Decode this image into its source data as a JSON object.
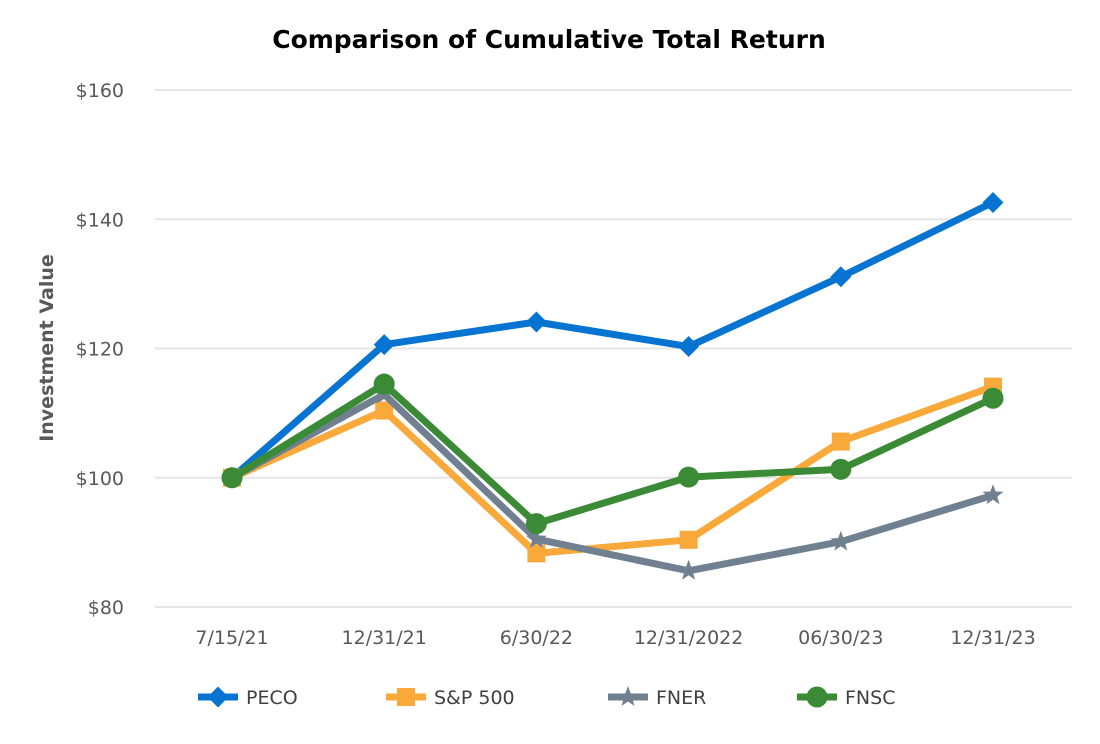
{
  "chart_data": {
    "type": "line",
    "title": "Comparison of Cumulative Total Return",
    "xlabel": "",
    "ylabel": "Investment Value",
    "categories": [
      "7/15/21",
      "12/31/21",
      "6/30/22",
      "12/31/2022",
      "06/30/23",
      "12/31/23"
    ],
    "ylim": [
      80,
      160
    ],
    "yticks": [
      80,
      100,
      120,
      140,
      160
    ],
    "ytick_labels": [
      "$80",
      "$100",
      "$120",
      "$140",
      "$160"
    ],
    "grid": true,
    "legend_position": "bottom",
    "series": [
      {
        "name": "PECO",
        "color": "#0874d2",
        "marker": "diamond",
        "values": [
          100,
          120.6,
          124.1,
          120.3,
          131.1,
          142.6
        ]
      },
      {
        "name": "S&P 500",
        "color": "#f8a93a",
        "marker": "square",
        "values": [
          100,
          110.4,
          88.3,
          90.4,
          105.6,
          114.1
        ]
      },
      {
        "name": "FNER",
        "color": "#708090",
        "marker": "star",
        "values": [
          100,
          112.9,
          90.5,
          85.6,
          90.1,
          97.3
        ]
      },
      {
        "name": "FNSC",
        "color": "#3a8a36",
        "marker": "circle",
        "values": [
          100,
          114.5,
          92.9,
          100.1,
          101.3,
          112.3
        ]
      }
    ]
  }
}
